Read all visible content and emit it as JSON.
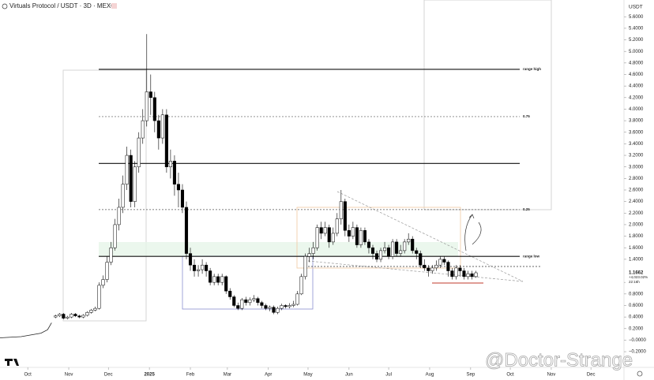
{
  "chart_data": {
    "type": "candlestick",
    "title": "Virtuals Protocol / USDT · 3D · MEXC",
    "y_axis_label": "USDT",
    "watermark": "@Doctor-Strange",
    "up_color": "#ffffff",
    "down_color": "#000000",
    "xlim": [
      -21,
      451
    ],
    "xticks": [
      {
        "value": 0,
        "label": "Oct"
      },
      {
        "value": 31,
        "label": "Nov"
      },
      {
        "value": 61,
        "label": "Dec"
      },
      {
        "value": 92,
        "label": "2025"
      },
      {
        "value": 123,
        "label": "Feb"
      },
      {
        "value": 151,
        "label": "Mar"
      },
      {
        "value": 182,
        "label": "Apr"
      },
      {
        "value": 212,
        "label": "May"
      },
      {
        "value": 243,
        "label": "Jun"
      },
      {
        "value": 273,
        "label": "Jul"
      },
      {
        "value": 304,
        "label": "Aug"
      },
      {
        "value": 335,
        "label": "Sep"
      },
      {
        "value": 365,
        "label": "Oct"
      },
      {
        "value": 396,
        "label": "Nov"
      },
      {
        "value": 426,
        "label": "Dec"
      }
    ],
    "ylim": [
      -0.39,
      5.89
    ],
    "yticks": [
      {
        "value": -0.2,
        "label": "−0.2000"
      },
      {
        "value": 0,
        "label": "−0.0000"
      },
      {
        "value": 0.2,
        "label": "0.2000"
      },
      {
        "value": 0.4,
        "label": "0.4000"
      },
      {
        "value": 0.6,
        "label": "0.6000"
      },
      {
        "value": 0.8,
        "label": "0.8000"
      },
      {
        "value": 1.0,
        "label": "1.0000"
      },
      {
        "value": 1.4,
        "label": "1.4000"
      },
      {
        "value": 1.6,
        "label": "1.6000"
      },
      {
        "value": 1.8,
        "label": "1.8000"
      },
      {
        "value": 2.0,
        "label": "2.0000"
      },
      {
        "value": 2.2,
        "label": "2.2000"
      },
      {
        "value": 2.4,
        "label": "2.4000"
      },
      {
        "value": 2.6,
        "label": "2.6000"
      },
      {
        "value": 2.8,
        "label": "2.8000"
      },
      {
        "value": 3.0,
        "label": "3.0000"
      },
      {
        "value": 3.2,
        "label": "3.2000"
      },
      {
        "value": 3.4,
        "label": "3.4000"
      },
      {
        "value": 3.6,
        "label": "3.6000"
      },
      {
        "value": 3.8,
        "label": "3.8000"
      },
      {
        "value": 4.0,
        "label": "4.0000"
      },
      {
        "value": 4.2,
        "label": "4.2000"
      },
      {
        "value": 4.4,
        "label": "4.4000"
      },
      {
        "value": 4.6,
        "label": "4.6000"
      },
      {
        "value": 4.8,
        "label": "4.8000"
      },
      {
        "value": 5.0,
        "label": "5.0000"
      },
      {
        "value": 5.2,
        "label": "5.2000"
      },
      {
        "value": 5.4,
        "label": "5.4000"
      },
      {
        "value": 5.6,
        "label": "5.6000"
      }
    ],
    "early_line": {
      "x": [
        -21,
        -5,
        10,
        15,
        18
      ],
      "values": [
        0.04,
        0.06,
        0.12,
        0.18,
        0.3
      ]
    },
    "x": [
      21,
      24,
      27,
      30,
      33,
      36,
      39,
      42,
      45,
      48,
      51,
      54,
      57,
      60,
      63,
      66,
      69,
      72,
      75,
      78,
      81,
      84,
      87,
      90,
      93,
      96,
      99,
      102,
      105,
      108,
      111,
      114,
      117,
      120,
      123,
      126,
      129,
      132,
      135,
      138,
      141,
      144,
      147,
      150,
      153,
      156,
      159,
      162,
      165,
      168,
      171,
      174,
      177,
      180,
      183,
      186,
      189,
      192,
      195,
      198,
      201,
      204,
      207,
      210,
      213,
      216,
      219,
      222,
      225,
      228,
      231,
      234,
      237,
      240,
      243,
      246,
      249,
      252,
      255,
      258,
      261,
      264,
      267,
      270,
      273,
      276,
      279,
      282,
      285,
      288,
      291,
      294,
      297,
      300,
      303,
      306,
      309,
      312,
      315,
      318,
      321,
      324,
      327,
      330,
      333,
      336,
      339
    ],
    "ohlc": [
      [
        0.4,
        0.44,
        0.38,
        0.42
      ],
      [
        0.42,
        0.47,
        0.4,
        0.45
      ],
      [
        0.45,
        0.47,
        0.36,
        0.38
      ],
      [
        0.38,
        0.42,
        0.36,
        0.4
      ],
      [
        0.4,
        0.47,
        0.38,
        0.45
      ],
      [
        0.45,
        0.47,
        0.4,
        0.42
      ],
      [
        0.42,
        0.44,
        0.38,
        0.4
      ],
      [
        0.4,
        0.45,
        0.38,
        0.43
      ],
      [
        0.43,
        0.5,
        0.41,
        0.48
      ],
      [
        0.48,
        0.54,
        0.46,
        0.52
      ],
      [
        0.52,
        0.58,
        0.5,
        0.55
      ],
      [
        0.55,
        1.0,
        0.53,
        0.95
      ],
      [
        0.95,
        1.12,
        0.9,
        1.05
      ],
      [
        1.05,
        1.45,
        1.0,
        1.35
      ],
      [
        1.35,
        1.7,
        1.3,
        1.6
      ],
      [
        1.6,
        2.1,
        1.55,
        2.0
      ],
      [
        2.0,
        2.45,
        1.9,
        2.3
      ],
      [
        2.3,
        2.85,
        2.2,
        2.7
      ],
      [
        2.7,
        3.35,
        2.6,
        3.2
      ],
      [
        3.2,
        3.3,
        2.3,
        2.4
      ],
      [
        2.4,
        3.1,
        2.3,
        3.0
      ],
      [
        3.0,
        3.6,
        2.9,
        3.5
      ],
      [
        3.5,
        4.0,
        3.4,
        3.8
      ],
      [
        3.8,
        5.3,
        3.7,
        4.3
      ],
      [
        4.3,
        4.6,
        3.9,
        4.2
      ],
      [
        4.2,
        4.3,
        3.6,
        3.8
      ],
      [
        3.8,
        3.9,
        3.3,
        3.5
      ],
      [
        3.5,
        4.0,
        3.4,
        3.9
      ],
      [
        3.9,
        4.0,
        2.9,
        3.0
      ],
      [
        3.0,
        3.3,
        2.8,
        3.1
      ],
      [
        3.1,
        3.2,
        2.5,
        2.7
      ],
      [
        2.7,
        2.9,
        2.3,
        2.6
      ],
      [
        2.6,
        2.7,
        2.2,
        2.3
      ],
      [
        2.3,
        2.4,
        1.4,
        1.5
      ],
      [
        1.5,
        1.6,
        1.2,
        1.3
      ],
      [
        1.3,
        1.4,
        1.1,
        1.2
      ],
      [
        1.2,
        1.3,
        1.1,
        1.22
      ],
      [
        1.22,
        1.4,
        1.15,
        1.3
      ],
      [
        1.3,
        1.35,
        1.1,
        1.2
      ],
      [
        1.2,
        1.25,
        0.95,
        1.0
      ],
      [
        1.0,
        1.15,
        0.95,
        1.1
      ],
      [
        1.1,
        1.15,
        0.95,
        1.0
      ],
      [
        1.0,
        1.15,
        0.95,
        1.1
      ],
      [
        1.1,
        1.12,
        0.8,
        0.85
      ],
      [
        0.85,
        0.9,
        0.7,
        0.75
      ],
      [
        0.75,
        0.78,
        0.57,
        0.6
      ],
      [
        0.6,
        0.65,
        0.52,
        0.55
      ],
      [
        0.55,
        0.73,
        0.52,
        0.7
      ],
      [
        0.7,
        0.75,
        0.6,
        0.65
      ],
      [
        0.65,
        0.74,
        0.6,
        0.7
      ],
      [
        0.7,
        0.78,
        0.66,
        0.72
      ],
      [
        0.72,
        0.75,
        0.6,
        0.65
      ],
      [
        0.65,
        0.68,
        0.55,
        0.6
      ],
      [
        0.6,
        0.63,
        0.52,
        0.55
      ],
      [
        0.55,
        0.6,
        0.5,
        0.57
      ],
      [
        0.57,
        0.6,
        0.45,
        0.48
      ],
      [
        0.48,
        0.58,
        0.45,
        0.55
      ],
      [
        0.55,
        0.63,
        0.52,
        0.6
      ],
      [
        0.6,
        0.62,
        0.55,
        0.58
      ],
      [
        0.58,
        0.64,
        0.55,
        0.6
      ],
      [
        0.6,
        0.68,
        0.57,
        0.62
      ],
      [
        0.62,
        0.85,
        0.6,
        0.8
      ],
      [
        0.8,
        1.15,
        0.78,
        1.1
      ],
      [
        1.1,
        1.5,
        1.05,
        1.45
      ],
      [
        1.45,
        1.6,
        1.35,
        1.5
      ],
      [
        1.5,
        1.7,
        1.4,
        1.6
      ],
      [
        1.6,
        2.0,
        1.55,
        1.95
      ],
      [
        1.95,
        2.05,
        1.75,
        1.85
      ],
      [
        1.85,
        2.05,
        1.8,
        1.95
      ],
      [
        1.95,
        2.0,
        1.6,
        1.7
      ],
      [
        1.7,
        1.95,
        1.65,
        1.85
      ],
      [
        1.85,
        2.2,
        1.8,
        2.1
      ],
      [
        2.1,
        2.6,
        2.0,
        2.4
      ],
      [
        2.4,
        2.45,
        1.8,
        1.9
      ],
      [
        1.9,
        2.0,
        1.7,
        1.8
      ],
      [
        1.8,
        2.05,
        1.75,
        1.95
      ],
      [
        1.95,
        2.0,
        1.6,
        1.65
      ],
      [
        1.65,
        1.95,
        1.6,
        1.9
      ],
      [
        1.9,
        1.95,
        1.65,
        1.7
      ],
      [
        1.7,
        1.75,
        1.5,
        1.6
      ],
      [
        1.6,
        1.65,
        1.4,
        1.5
      ],
      [
        1.5,
        1.55,
        1.35,
        1.4
      ],
      [
        1.4,
        1.6,
        1.35,
        1.55
      ],
      [
        1.55,
        1.7,
        1.5,
        1.6
      ],
      [
        1.6,
        1.65,
        1.4,
        1.45
      ],
      [
        1.45,
        1.75,
        1.4,
        1.7
      ],
      [
        1.7,
        1.75,
        1.45,
        1.5
      ],
      [
        1.5,
        1.65,
        1.45,
        1.55
      ],
      [
        1.55,
        1.75,
        1.5,
        1.7
      ],
      [
        1.7,
        1.85,
        1.65,
        1.75
      ],
      [
        1.75,
        1.8,
        1.5,
        1.55
      ],
      [
        1.55,
        1.6,
        1.4,
        1.5
      ],
      [
        1.5,
        1.55,
        1.25,
        1.3
      ],
      [
        1.3,
        1.4,
        1.2,
        1.25
      ],
      [
        1.25,
        1.3,
        1.1,
        1.2
      ],
      [
        1.2,
        1.3,
        1.15,
        1.25
      ],
      [
        1.25,
        1.38,
        1.2,
        1.3
      ],
      [
        1.3,
        1.45,
        1.25,
        1.4
      ],
      [
        1.4,
        1.45,
        1.3,
        1.35
      ],
      [
        1.35,
        1.38,
        1.1,
        1.2
      ],
      [
        1.2,
        1.25,
        1.05,
        1.1
      ],
      [
        1.1,
        1.3,
        1.05,
        1.25
      ],
      [
        1.25,
        1.3,
        1.1,
        1.2
      ],
      [
        1.2,
        1.25,
        1.05,
        1.1
      ],
      [
        1.1,
        1.2,
        1.05,
        1.15
      ],
      [
        1.15,
        1.2,
        1.05,
        1.1
      ],
      [
        1.1,
        1.2,
        1.08,
        1.1662
      ]
    ],
    "levels": [
      {
        "value": 4.69,
        "label": "range high",
        "dashed": false
      },
      {
        "value": 3.87,
        "label": "0.75",
        "dashed": true
      },
      {
        "value": 3.06,
        "dashed": false
      },
      {
        "value": 2.26,
        "label": "0.25",
        "dashed": true
      },
      {
        "value": 1.45,
        "label": "range low",
        "dashed": false
      }
    ],
    "last_price": {
      "value": 1.1662,
      "label": "1.1662",
      "change": "+4,023.02%",
      "countdown": "22:16h"
    }
  }
}
